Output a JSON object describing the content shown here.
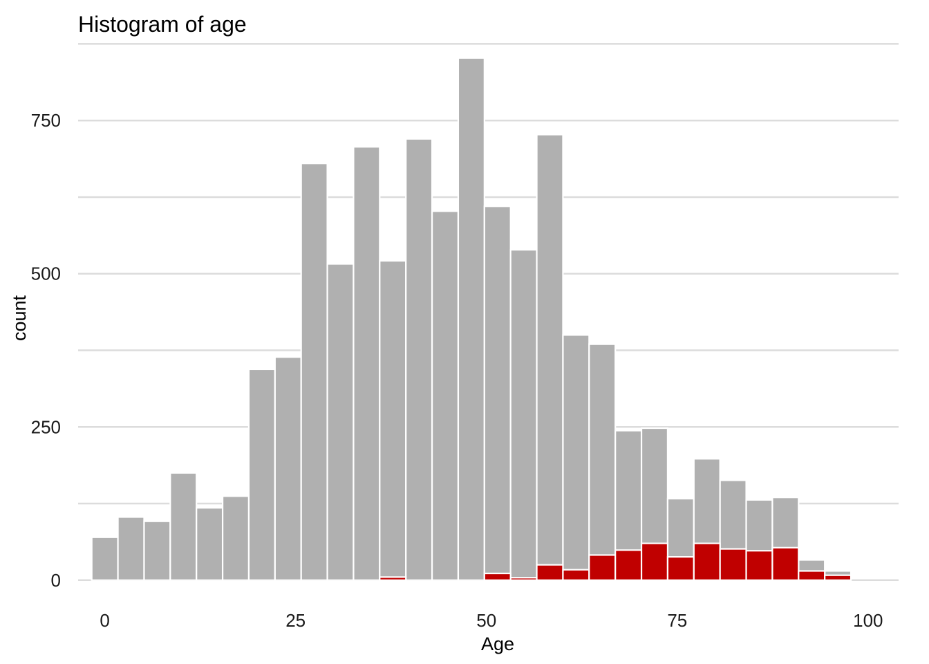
{
  "chart_data": {
    "type": "bar",
    "title": "Histogram of age",
    "xlabel": "Age",
    "ylabel": "count",
    "xlim": [
      -3.5,
      104
    ],
    "ylim": [
      -42,
      880
    ],
    "x_ticks": [
      0,
      25,
      50,
      75,
      100
    ],
    "y_ticks": [
      0,
      250,
      500,
      750
    ],
    "y_minor_ticks": [
      125,
      375,
      625,
      875
    ],
    "grid": "horizontal",
    "legend": "none",
    "bin_width": 3.43,
    "bin_centers": [
      0,
      3.43,
      6.86,
      10.29,
      13.72,
      17.15,
      20.58,
      24.01,
      27.44,
      30.87,
      34.3,
      37.73,
      41.16,
      44.59,
      48.02,
      51.45,
      54.88,
      58.31,
      61.74,
      65.17,
      68.6,
      72.03,
      75.46,
      78.89,
      82.32,
      85.75,
      89.18,
      92.61,
      96.04,
      99.47
    ],
    "series": [
      {
        "name": "",
        "color": "#b0b0b0",
        "values": [
          70,
          103,
          96,
          175,
          118,
          137,
          344,
          364,
          680,
          516,
          707,
          521,
          720,
          602,
          852,
          610,
          539,
          727,
          400,
          385,
          244,
          248,
          133,
          198,
          163,
          131,
          135,
          33,
          15,
          0
        ]
      },
      {
        "name": "",
        "color": "#c00000",
        "values": [
          0,
          0,
          0,
          0,
          0,
          0,
          0,
          0,
          0,
          0,
          0,
          5,
          0,
          0,
          0,
          11,
          4,
          25,
          17,
          41,
          49,
          60,
          38,
          60,
          51,
          48,
          53,
          15,
          8,
          0
        ]
      }
    ]
  }
}
